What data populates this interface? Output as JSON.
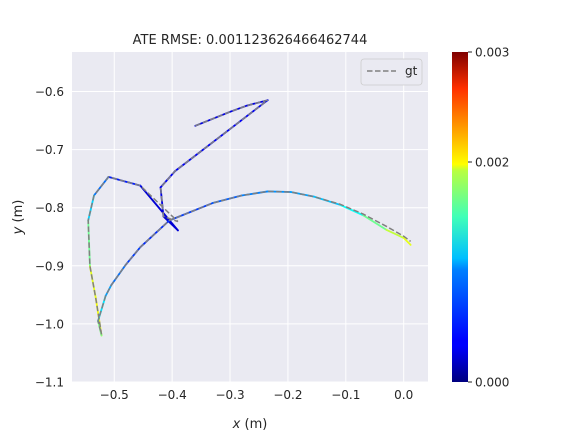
{
  "chart_data": {
    "type": "line",
    "title": "ATE RMSE: 0.001123626466462744",
    "xlabel_var": "x",
    "xlabel_unit": " (m)",
    "ylabel_var": "y",
    "ylabel_unit": " (m)",
    "xlim": [
      -0.573,
      0.042
    ],
    "ylim": [
      -1.1,
      -0.532
    ],
    "xticks": [
      -0.5,
      -0.4,
      -0.3,
      -0.2,
      -0.1,
      0.0
    ],
    "xtick_labels": [
      "−0.5",
      "−0.4",
      "−0.3",
      "−0.2",
      "−0.1",
      "0.0"
    ],
    "yticks": [
      -0.6,
      -0.7,
      -0.8,
      -0.9,
      -1.0,
      -1.1
    ],
    "ytick_labels": [
      "−0.6",
      "−0.7",
      "−0.8",
      "−0.9",
      "−1.0",
      "−1.1"
    ],
    "grid": true,
    "legend": {
      "position": "top-right",
      "entries": [
        {
          "label": "gt",
          "style": "dashed",
          "color": "#808080"
        }
      ]
    },
    "colorbar": {
      "colormap": "jet",
      "range": [
        0.0,
        0.003
      ],
      "ticks": [
        0.0,
        0.002,
        0.003
      ],
      "tick_labels": [
        "0.000",
        "0.002",
        "0.003"
      ]
    },
    "gt": {
      "x": [
        -0.36,
        -0.3,
        -0.27,
        -0.235,
        -0.395,
        -0.42,
        -0.415,
        -0.39,
        -0.455,
        -0.51,
        -0.535,
        -0.545,
        -0.542,
        -0.532,
        -0.522,
        -0.528,
        -0.515,
        -0.505,
        -0.48,
        -0.455,
        -0.405,
        -0.33,
        -0.28,
        -0.235,
        -0.195,
        -0.155,
        -0.11,
        -0.07,
        -0.03,
        0.0,
        0.012
      ],
      "y": [
        -0.659,
        -0.635,
        -0.624,
        -0.615,
        -0.737,
        -0.765,
        -0.815,
        -0.824,
        -0.762,
        -0.747,
        -0.779,
        -0.822,
        -0.9,
        -0.955,
        -1.018,
        -0.995,
        -0.952,
        -0.933,
        -0.898,
        -0.868,
        -0.822,
        -0.792,
        -0.779,
        -0.772,
        -0.773,
        -0.781,
        -0.794,
        -0.811,
        -0.832,
        -0.849,
        -0.858
      ]
    },
    "estimate": {
      "x": [
        -0.36,
        -0.3,
        -0.27,
        -0.235,
        -0.395,
        -0.42,
        -0.415,
        -0.39,
        -0.455,
        -0.51,
        -0.535,
        -0.545,
        -0.542,
        -0.532,
        -0.522,
        -0.528,
        -0.515,
        -0.505,
        -0.48,
        -0.455,
        -0.405,
        -0.33,
        -0.28,
        -0.235,
        -0.195,
        -0.155,
        -0.11,
        -0.07,
        -0.03,
        0.0,
        0.012
      ],
      "y": [
        -0.659,
        -0.635,
        -0.624,
        -0.615,
        -0.737,
        -0.765,
        -0.815,
        -0.839,
        -0.762,
        -0.747,
        -0.779,
        -0.822,
        -0.901,
        -0.955,
        -1.02,
        -0.995,
        -0.952,
        -0.933,
        -0.898,
        -0.868,
        -0.822,
        -0.792,
        -0.779,
        -0.772,
        -0.773,
        -0.781,
        -0.795,
        -0.813,
        -0.838,
        -0.852,
        -0.864
      ],
      "error": [
        0.0003,
        0.0003,
        0.0003,
        0.0003,
        0.0004,
        0.0003,
        0.0003,
        0.0002,
        0.0003,
        0.0006,
        0.0008,
        0.0012,
        0.0017,
        0.0019,
        0.0018,
        0.0012,
        0.0009,
        0.0008,
        0.0006,
        0.0005,
        0.0005,
        0.0006,
        0.0007,
        0.0008,
        0.0008,
        0.0009,
        0.001,
        0.0013,
        0.0016,
        0.0018,
        0.0018
      ]
    }
  }
}
